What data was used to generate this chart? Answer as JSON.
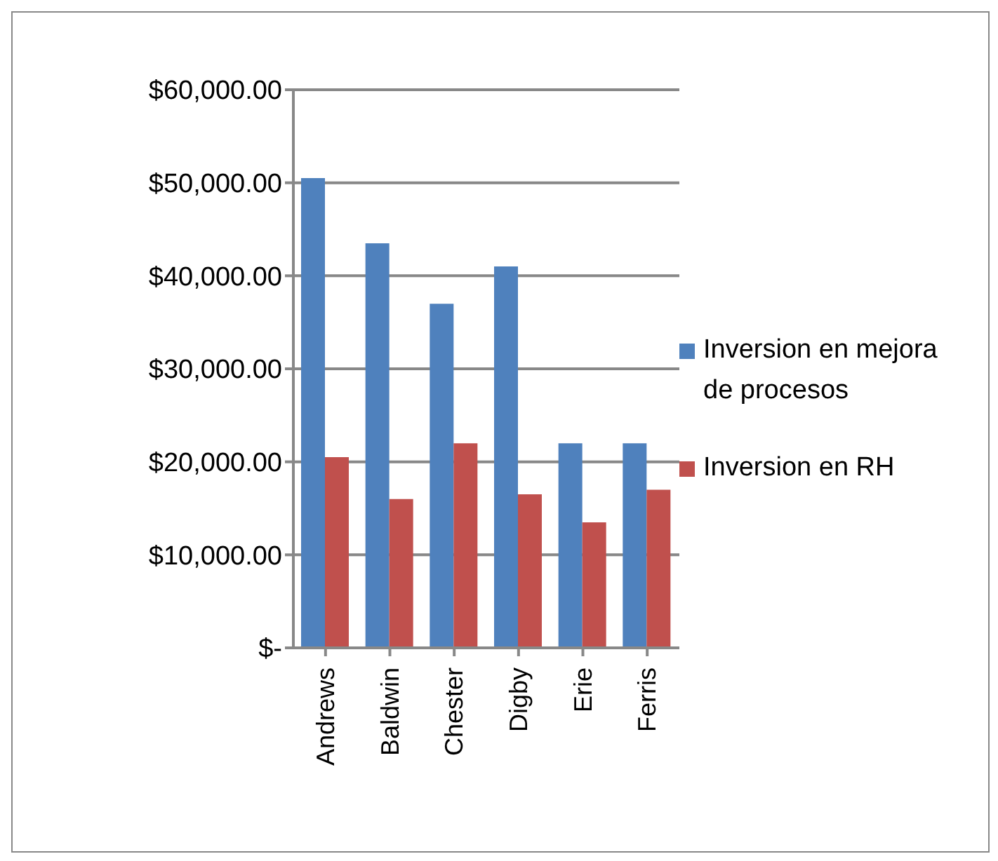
{
  "chart_data": {
    "type": "bar",
    "categories": [
      "Andrews",
      "Baldwin",
      "Chester",
      "Digby",
      "Erie",
      "Ferris"
    ],
    "series": [
      {
        "name": "Inversion en mejora de procesos",
        "color": "#4f81bd",
        "values": [
          50500,
          43500,
          37000,
          41000,
          22000,
          22000
        ]
      },
      {
        "name": "Inversion en RH",
        "color": "#c0504d",
        "values": [
          20500,
          16000,
          22000,
          16500,
          13500,
          17000
        ]
      }
    ],
    "ylim": [
      0,
      60000
    ],
    "yticks": [
      {
        "value": 0,
        "label": "$-"
      },
      {
        "value": 10000,
        "label": "$10,000.00"
      },
      {
        "value": 20000,
        "label": "$20,000.00"
      },
      {
        "value": 30000,
        "label": "$30,000.00"
      },
      {
        "value": 40000,
        "label": "$40,000.00"
      },
      {
        "value": 50000,
        "label": "$50,000.00"
      },
      {
        "value": 60000,
        "label": "$60,000.00"
      }
    ],
    "grid": "y",
    "legend": "right"
  }
}
